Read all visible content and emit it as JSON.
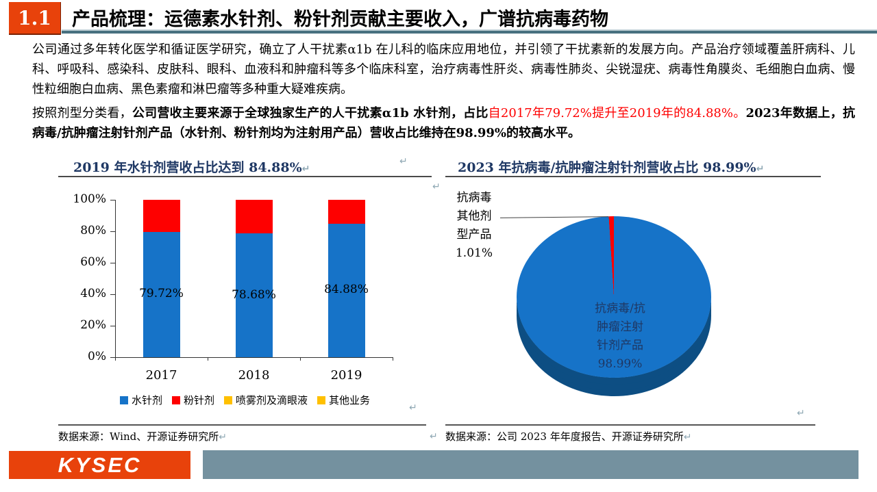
{
  "header": {
    "section": "1.1",
    "title": "产品梳理：运德素水针剂、粉针剂贡献主要收入，广谱抗病毒药物"
  },
  "body": {
    "p1": "公司通过多年转化医学和循证医学研究，确立了人干扰素α1b 在儿科的临床应用地位，并引领了干扰素新的发展方向。产品治疗领域覆盖肝病科、儿科、呼吸科、感染科、皮肤科、眼科、血液科和肿瘤科等多个临床科室，治疗病毒性肝炎、病毒性肺炎、尖锐湿疣、病毒性角膜炎、毛细胞白血病、慢性粒细胞白血病、黑色素瘤和淋巴瘤等多种重大疑难疾病。",
    "p2_normal": "按照剂型分类看，",
    "p2_bold": "公司营收主要来源于全球独家生产的人干扰素α1b 水针剂，占比",
    "p2_red": "自2017年79.72%提升至2019年的84.88%。",
    "p2_bold2": "2023年数据上，抗病毒/抗肿瘤注射针剂产品（水针剂、粉针剂均为注射用产品）营收占比维持在98.99%的较高水平。"
  },
  "sources": {
    "bar": "数据来源：Wind、开源证券研究所",
    "pie": "数据来源：公司 2023 年年度报告、开源证券研究所"
  },
  "marks": {
    "glyph": "↵"
  },
  "footer": {
    "logo": "KYSEC"
  },
  "colors": {
    "accent_red": "#e8420b",
    "series_blue": "#1673c8",
    "series_red": "#fe0000",
    "series_yellow": "#ffc000",
    "title_navy": "#1f3864",
    "footer_gray": "#74919f",
    "pie_side_blue": "#0d4e83"
  },
  "chart_data": [
    {
      "type": "bar",
      "stacked": true,
      "title": "2019 年水针剂营收占比达到 84.88%",
      "categories": [
        "2017",
        "2018",
        "2019"
      ],
      "series": [
        {
          "name": "水针剂",
          "color": "#1673c8",
          "values": [
            79.72,
            78.68,
            84.88
          ]
        },
        {
          "name": "粉针剂",
          "color": "#fe0000",
          "values": [
            20.28,
            21.32,
            15.12
          ]
        },
        {
          "name": "喷雾剂及滴眼液",
          "color": "#ffc000",
          "values": [
            0,
            0,
            0
          ]
        },
        {
          "name": "其他业务",
          "color": "#ffc000",
          "values": [
            0,
            0,
            0
          ]
        }
      ],
      "data_labels": [
        "79.72%",
        "78.68%",
        "84.88%"
      ],
      "y_ticks": [
        "0%",
        "20%",
        "40%",
        "60%",
        "80%",
        "100%"
      ],
      "ylim": [
        0,
        100
      ],
      "grid": false,
      "legend_position": "bottom"
    },
    {
      "type": "pie",
      "threed": true,
      "title": "2023 年抗病毒/抗肿瘤注射针剂营收占比 98.99%",
      "slices": [
        {
          "label": "抗病毒/抗肿瘤注射针剂产品",
          "value": 98.99,
          "color": "#1673c8",
          "label_lines": [
            "抗病毒/抗",
            "肿瘤注射",
            "针剂产品",
            "98.99%"
          ]
        },
        {
          "label": "抗病毒其他剂型产品",
          "value": 1.01,
          "color": "#fe0000",
          "label_lines": [
            "抗病毒",
            "其他剂",
            "型产品",
            "1.01%"
          ]
        }
      ],
      "legend_position": "none"
    }
  ]
}
